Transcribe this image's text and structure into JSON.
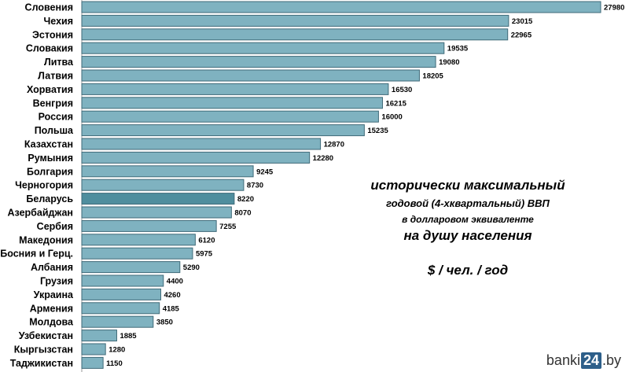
{
  "chart_data": {
    "type": "bar",
    "orientation": "horizontal",
    "categories": [
      "Словения",
      "Чехия",
      "Эстония",
      "Словакия",
      "Литва",
      "Латвия",
      "Хорватия",
      "Венгрия",
      "Россия",
      "Польша",
      "Казахстан",
      "Румыния",
      "Болгария",
      "Черногория",
      "Беларусь",
      "Азербайджан",
      "Сербия",
      "Македония",
      "Босния и Герц.",
      "Албания",
      "Грузия",
      "Украина",
      "Армения",
      "Молдова",
      "Узбекистан",
      "Кыргызстан",
      "Таджикистан"
    ],
    "values": [
      27980,
      23015,
      22965,
      19535,
      19080,
      18205,
      16530,
      16215,
      16000,
      15235,
      12870,
      12280,
      9245,
      8730,
      8220,
      8070,
      7255,
      6120,
      5975,
      5290,
      4400,
      4260,
      4185,
      3850,
      1885,
      1280,
      1150
    ],
    "value_labels": [
      "27980",
      "23015",
      "22965",
      "19535",
      "19080",
      "18205",
      "16530",
      "16215",
      "16000",
      "15235",
      "12870",
      "12280",
      "9245",
      "8730",
      "8220",
      "8070",
      "7255",
      "6120",
      "5975",
      "5290",
      "4400",
      "4260",
      "4185",
      "3850",
      "1885",
      "1280",
      "1150"
    ],
    "highlighted": "Беларусь",
    "xlim": [
      0,
      27980
    ],
    "grid": false,
    "title": "",
    "xlabel": "",
    "ylabel": "",
    "colors": {
      "bar": "#7fb2c0",
      "bar_highlight": "#4f8e9e",
      "bar_border": "#3f6a78"
    }
  },
  "annotation": {
    "line1": "исторически максимальный",
    "line2": "годовой  (4-хквартальный) ВВП",
    "line3": "в долларовом эквиваленте",
    "line4": "на душу населения",
    "line5": "$ / чел. / год"
  },
  "brand": {
    "prefix": "banki",
    "number": "24",
    "suffix": ".by"
  }
}
